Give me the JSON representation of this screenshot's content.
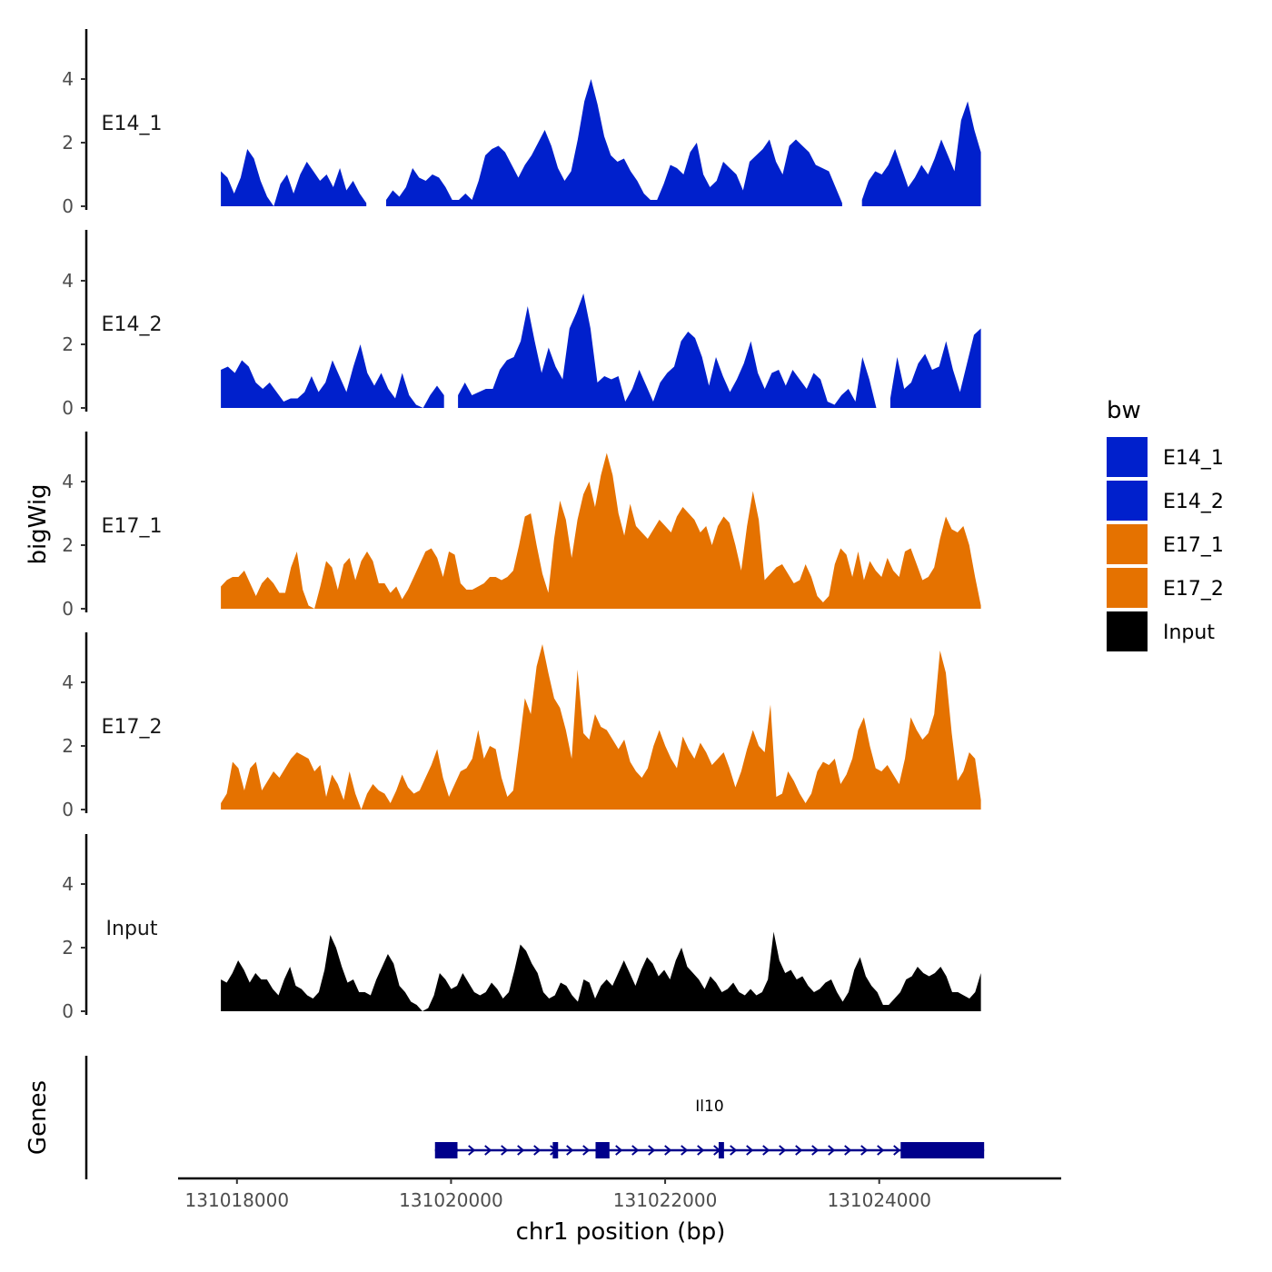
{
  "chart_data": {
    "type": "area",
    "xlabel": "chr1 position (bp)",
    "ylabel": "bigWig",
    "genes_label": "Genes",
    "xlim": [
      131017450,
      131025700
    ],
    "x_ticks": [
      131018000,
      131020000,
      131022000,
      131024000
    ],
    "x_tick_labels": [
      "131018000",
      "131020000",
      "131022000",
      "131024000"
    ],
    "ylim": [
      0,
      5.5
    ],
    "y_ticks": [
      0,
      2,
      4
    ],
    "y_tick_labels": [
      "0",
      "2",
      "4"
    ],
    "data_range": [
      131017850,
      131024950
    ],
    "legend": {
      "title": "bw",
      "position": "right",
      "entries": [
        {
          "label": "E14_1",
          "color": "#0020cc"
        },
        {
          "label": "E14_2",
          "color": "#0020cc"
        },
        {
          "label": "E17_1",
          "color": "#e57200"
        },
        {
          "label": "E17_2",
          "color": "#e57200"
        },
        {
          "label": "Input",
          "color": "#000000"
        }
      ]
    },
    "series": [
      {
        "name": "E14_1",
        "color": "#0020cc",
        "values": [
          1.1,
          0.9,
          0.4,
          0.9,
          1.8,
          1.5,
          0.8,
          0.3,
          0.0,
          0.7,
          1.0,
          0.4,
          1.0,
          1.4,
          1.1,
          0.8,
          1.0,
          0.6,
          1.2,
          0.5,
          0.8,
          0.4,
          0.1,
          null,
          null,
          0.2,
          0.5,
          0.3,
          0.6,
          1.2,
          0.9,
          0.8,
          1.0,
          0.9,
          0.6,
          0.2,
          0.2,
          0.4,
          0.2,
          0.8,
          1.6,
          1.8,
          1.9,
          1.7,
          1.3,
          0.9,
          1.3,
          1.6,
          2.0,
          2.4,
          1.9,
          1.2,
          0.8,
          1.1,
          2.1,
          3.3,
          4.0,
          3.2,
          2.2,
          1.6,
          1.4,
          1.5,
          1.1,
          0.8,
          0.4,
          0.2,
          0.2,
          0.7,
          1.3,
          1.2,
          1.0,
          1.7,
          2.0,
          1.0,
          0.6,
          0.8,
          1.4,
          1.2,
          1.0,
          0.5,
          1.4,
          1.6,
          1.8,
          2.1,
          1.4,
          1.0,
          1.9,
          2.1,
          1.9,
          1.7,
          1.3,
          1.2,
          1.1,
          0.6,
          0.1,
          null,
          null,
          0.2,
          0.8,
          1.1,
          1.0,
          1.3,
          1.8,
          1.2,
          0.6,
          0.9,
          1.3,
          1.0,
          1.5,
          2.1,
          1.6,
          1.1,
          2.7,
          3.3,
          2.4,
          1.7
        ]
      },
      {
        "name": "E14_2",
        "color": "#0020cc",
        "values": [
          1.2,
          1.3,
          1.1,
          1.5,
          1.3,
          0.8,
          0.6,
          0.8,
          0.5,
          0.2,
          0.3,
          0.3,
          0.5,
          1.0,
          0.5,
          0.8,
          1.5,
          1.0,
          0.5,
          1.3,
          2.0,
          1.1,
          0.7,
          1.1,
          0.6,
          0.3,
          1.1,
          0.4,
          0.1,
          0.0,
          0.4,
          0.7,
          0.4,
          null,
          0.4,
          0.8,
          0.4,
          0.5,
          0.6,
          0.6,
          1.2,
          1.5,
          1.6,
          2.1,
          3.2,
          2.1,
          1.1,
          1.9,
          1.3,
          0.9,
          2.5,
          3.0,
          3.6,
          2.5,
          0.8,
          1.0,
          0.9,
          1.0,
          0.2,
          0.6,
          1.2,
          0.7,
          0.2,
          0.8,
          1.1,
          1.3,
          2.1,
          2.4,
          2.2,
          1.6,
          0.7,
          1.6,
          1.0,
          0.5,
          0.9,
          1.4,
          2.1,
          1.1,
          0.6,
          1.1,
          1.2,
          0.7,
          1.2,
          0.9,
          0.6,
          1.1,
          0.9,
          0.2,
          0.1,
          0.4,
          0.6,
          0.2,
          1.6,
          0.9,
          0.0,
          null,
          0.3,
          1.6,
          0.6,
          0.8,
          1.4,
          1.7,
          1.2,
          1.3,
          2.1,
          1.2,
          0.5,
          1.4,
          2.3,
          2.5
        ]
      },
      {
        "name": "E17_1",
        "color": "#e57200",
        "values": [
          0.7,
          0.9,
          1.0,
          1.0,
          1.2,
          0.8,
          0.4,
          0.8,
          1.0,
          0.8,
          0.5,
          0.5,
          1.3,
          1.8,
          0.6,
          0.1,
          0.0,
          0.7,
          1.5,
          1.3,
          0.6,
          1.4,
          1.6,
          0.9,
          1.5,
          1.8,
          1.5,
          0.8,
          0.8,
          0.5,
          0.7,
          0.3,
          0.6,
          1.0,
          1.4,
          1.8,
          1.9,
          1.6,
          1.0,
          1.8,
          1.7,
          0.8,
          0.6,
          0.6,
          0.7,
          0.8,
          1.0,
          1.0,
          0.9,
          1.0,
          1.2,
          2.0,
          2.9,
          3.0,
          2.0,
          1.1,
          0.5,
          2.2,
          3.4,
          2.8,
          1.6,
          2.8,
          3.6,
          4.0,
          3.2,
          4.2,
          4.9,
          4.2,
          3.0,
          2.3,
          3.3,
          2.6,
          2.4,
          2.2,
          2.5,
          2.8,
          2.6,
          2.4,
          2.9,
          3.2,
          3.0,
          2.8,
          2.4,
          2.6,
          2.0,
          2.6,
          2.9,
          2.7,
          2.0,
          1.2,
          2.6,
          3.7,
          2.8,
          0.9,
          1.1,
          1.3,
          1.4,
          1.1,
          0.8,
          0.9,
          1.4,
          1.0,
          0.4,
          0.2,
          0.4,
          1.4,
          1.9,
          1.7,
          1.0,
          1.8,
          0.9,
          1.5,
          1.2,
          1.0,
          1.6,
          1.2,
          1.0,
          1.8,
          1.9,
          1.4,
          0.9,
          1.0,
          1.3,
          2.2,
          2.9,
          2.5,
          2.4,
          2.6,
          2.0,
          1.0,
          0.1
        ]
      },
      {
        "name": "E17_2",
        "color": "#e57200",
        "values": [
          0.2,
          0.5,
          1.5,
          1.3,
          0.6,
          1.3,
          1.5,
          0.6,
          0.9,
          1.2,
          1.0,
          1.3,
          1.6,
          1.8,
          1.7,
          1.6,
          1.2,
          1.4,
          0.4,
          1.1,
          0.8,
          0.3,
          1.2,
          0.5,
          0.0,
          0.5,
          0.8,
          0.6,
          0.5,
          0.2,
          0.6,
          1.1,
          0.7,
          0.5,
          0.6,
          1.0,
          1.4,
          1.9,
          1.0,
          0.4,
          0.8,
          1.2,
          1.3,
          1.6,
          2.5,
          1.6,
          2.0,
          1.9,
          1.0,
          0.4,
          0.6,
          2.0,
          3.5,
          3.0,
          4.5,
          5.2,
          4.3,
          3.5,
          3.2,
          2.5,
          1.6,
          4.4,
          2.4,
          2.2,
          3.0,
          2.6,
          2.5,
          2.2,
          1.9,
          2.2,
          1.5,
          1.2,
          1.0,
          1.3,
          2.0,
          2.5,
          2.0,
          1.6,
          1.3,
          2.3,
          1.9,
          1.6,
          2.1,
          1.8,
          1.4,
          1.6,
          1.8,
          1.3,
          0.7,
          1.2,
          1.9,
          2.5,
          2.0,
          1.8,
          3.3,
          0.4,
          0.5,
          1.2,
          0.9,
          0.5,
          0.2,
          0.5,
          1.2,
          1.5,
          1.4,
          1.6,
          0.8,
          1.1,
          1.6,
          2.5,
          2.9,
          2.0,
          1.3,
          1.2,
          1.4,
          1.1,
          0.8,
          1.6,
          2.9,
          2.5,
          2.2,
          2.4,
          3.0,
          5.0,
          4.3,
          2.4,
          0.9,
          1.2,
          1.8,
          1.6,
          0.3
        ]
      },
      {
        "name": "Input",
        "color": "#000000",
        "values": [
          1.0,
          0.9,
          1.2,
          1.6,
          1.3,
          0.9,
          1.2,
          1.0,
          1.0,
          0.7,
          0.5,
          1.0,
          1.4,
          0.8,
          0.7,
          0.5,
          0.4,
          0.6,
          1.3,
          2.4,
          2.0,
          1.4,
          0.9,
          1.0,
          0.6,
          0.6,
          0.5,
          1.0,
          1.4,
          1.8,
          1.5,
          0.8,
          0.6,
          0.3,
          0.2,
          0.0,
          0.1,
          0.5,
          1.2,
          1.0,
          0.7,
          0.8,
          1.2,
          0.9,
          0.6,
          0.5,
          0.6,
          0.9,
          0.7,
          0.4,
          0.6,
          1.3,
          2.1,
          1.9,
          1.5,
          1.2,
          0.6,
          0.4,
          0.5,
          0.9,
          0.8,
          0.5,
          0.3,
          1.0,
          0.9,
          0.4,
          0.8,
          1.0,
          0.8,
          1.2,
          1.6,
          1.2,
          0.8,
          1.3,
          1.7,
          1.5,
          1.1,
          1.3,
          1.0,
          1.6,
          2.0,
          1.4,
          1.2,
          1.0,
          0.7,
          1.1,
          0.9,
          0.6,
          0.7,
          0.9,
          0.6,
          0.5,
          0.7,
          0.5,
          0.6,
          1.0,
          2.5,
          1.6,
          1.2,
          1.3,
          1.0,
          1.1,
          0.8,
          0.6,
          0.7,
          0.9,
          1.0,
          0.6,
          0.3,
          0.6,
          1.3,
          1.7,
          1.1,
          0.8,
          0.6,
          0.2,
          0.2,
          0.4,
          0.6,
          1.0,
          1.1,
          1.4,
          1.2,
          1.1,
          1.2,
          1.4,
          1.1,
          0.6,
          0.6,
          0.5,
          0.4,
          0.6,
          1.2
        ]
      }
    ],
    "genes": [
      {
        "name": "Il10",
        "strand": "+",
        "start": 131019850,
        "end": 131024980,
        "exons": [
          [
            131019850,
            131020060
          ],
          [
            131020950,
            131021000
          ],
          [
            131021350,
            131021480
          ],
          [
            131022500,
            131022550
          ],
          [
            131024200,
            131024980
          ]
        ]
      }
    ]
  }
}
